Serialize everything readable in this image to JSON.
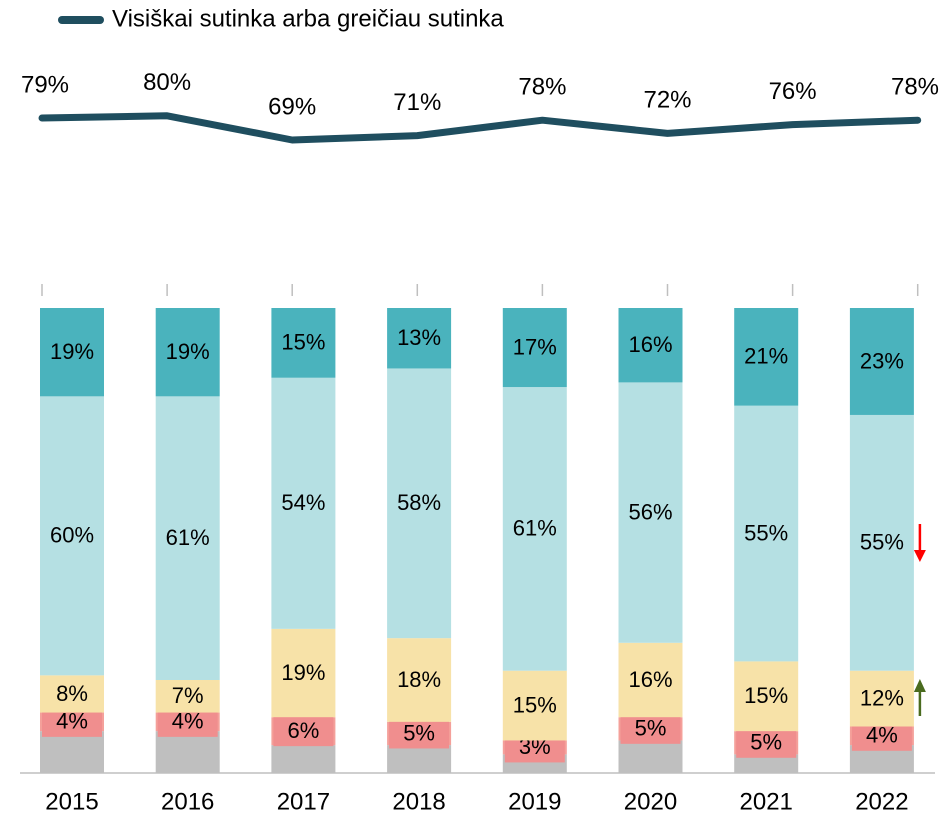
{
  "chart_data": {
    "type": "stacked_bar_line",
    "categories": [
      "2015",
      "2016",
      "2017",
      "2018",
      "2019",
      "2020",
      "2021",
      "2022"
    ],
    "ylim": [
      0,
      100
    ],
    "series": [
      {
        "color": "#bfbfbf",
        "values": [
          9,
          9,
          6,
          6,
          4,
          7,
          4,
          6
        ]
      },
      {
        "color": "#f4a09a",
        "label_color": "#f08e8e",
        "values": [
          4,
          4,
          6,
          5,
          3,
          5,
          5,
          4
        ],
        "value_labels": [
          "4%",
          "4%",
          "6%",
          "5%",
          "3%",
          "5%",
          "5%",
          "4%"
        ]
      },
      {
        "color": "#f7e2a8",
        "values": [
          8,
          7,
          19,
          18,
          15,
          16,
          15,
          12
        ],
        "value_labels": [
          "8%",
          "7%",
          "19%",
          "18%",
          "15%",
          "16%",
          "15%",
          "12%"
        ]
      },
      {
        "color": "#b5e0e3",
        "values": [
          60,
          61,
          54,
          58,
          61,
          56,
          55,
          55
        ],
        "value_labels": [
          "60%",
          "61%",
          "54%",
          "58%",
          "61%",
          "56%",
          "55%",
          "55%"
        ]
      },
      {
        "color": "#4ab3bd",
        "values": [
          19,
          19,
          15,
          13,
          17,
          16,
          21,
          23
        ],
        "value_labels": [
          "19%",
          "19%",
          "15%",
          "13%",
          "17%",
          "16%",
          "21%",
          "23%"
        ]
      }
    ],
    "line": {
      "name": "Visiškai sutinka arba greičiau sutinka",
      "color": "#1f4e5f",
      "values": [
        79,
        80,
        69,
        71,
        78,
        72,
        76,
        78
      ],
      "value_labels": [
        "79%",
        "80%",
        "69%",
        "71%",
        "78%",
        "72%",
        "76%",
        "78%"
      ]
    }
  }
}
